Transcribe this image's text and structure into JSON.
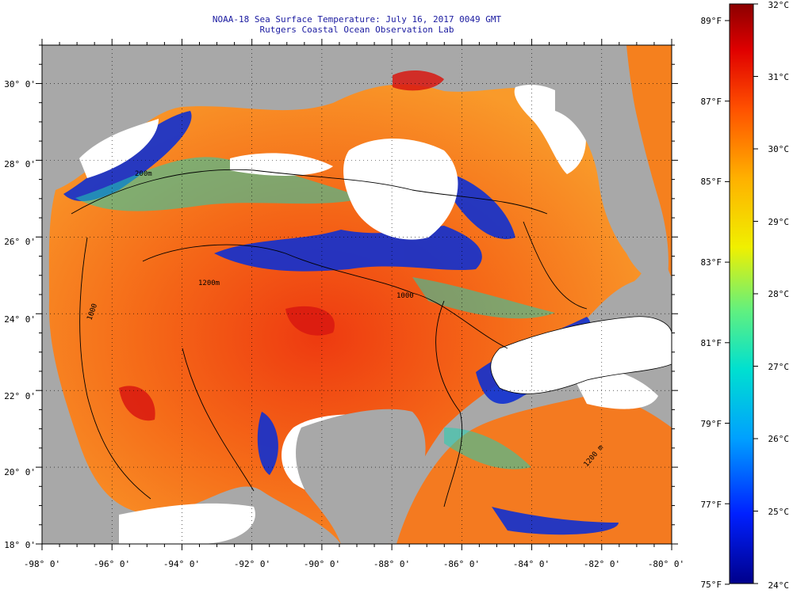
{
  "header": {
    "title_line1": "NOAA-18 Sea Surface Temperature:  July 16, 2017 0049 GMT",
    "title_line2": "Rutgers Coastal Ocean Observation Lab"
  },
  "map": {
    "lon_labels": [
      "-98° 0'",
      "-96° 0'",
      "-94° 0'",
      "-92° 0'",
      "-90° 0'",
      "-88° 0'",
      "-86° 0'",
      "-84° 0'",
      "-82° 0'",
      "-80° 0'"
    ],
    "lat_labels": [
      "30° 0'",
      "28° 0'",
      "26° 0'",
      "24° 0'",
      "22° 0'",
      "20° 0'",
      "18° 0'"
    ],
    "contour_labels": [
      "200m",
      "1000",
      "1200m",
      "1000",
      "1200 m"
    ],
    "colors": {
      "land": "#a8a8a8",
      "cloud": "#ffffff",
      "contour": "#000000",
      "title": "#1a1aa0"
    }
  },
  "colorbar": {
    "fahrenheit_labels": [
      "89°F",
      "87°F",
      "85°F",
      "83°F",
      "81°F",
      "79°F",
      "77°F",
      "75°F"
    ],
    "celsius_labels": [
      "32°C",
      "31°C",
      "30°C",
      "29°C",
      "28°C",
      "27°C",
      "26°C",
      "25°C",
      "24°C"
    ],
    "range_c": [
      24,
      32
    ],
    "range_f": [
      75,
      89.6
    ]
  }
}
